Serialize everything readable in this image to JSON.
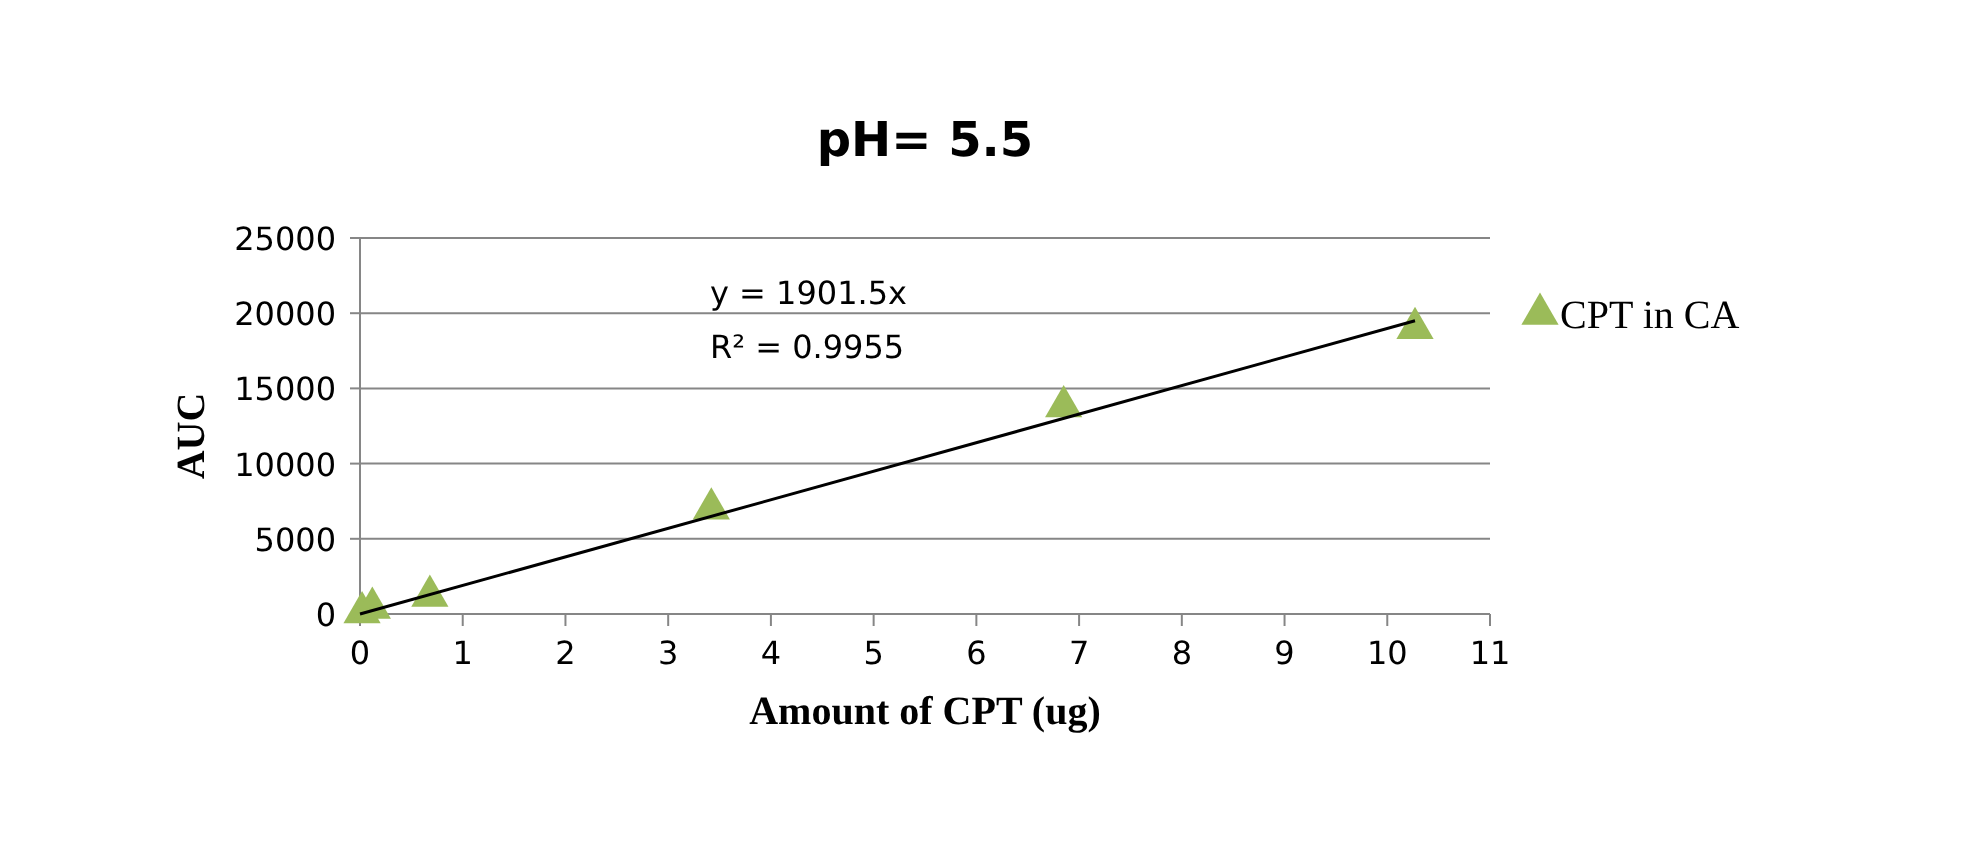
{
  "chart_data": {
    "type": "scatter",
    "title": "pH= 5.5",
    "xlabel": "Amount of CPT (ug)",
    "ylabel": "AUC",
    "xlim": [
      0,
      11
    ],
    "xticks": [
      0,
      1,
      2,
      3,
      4,
      5,
      6,
      7,
      8,
      9,
      10,
      11
    ],
    "ylim": [
      0,
      25000
    ],
    "yticks": [
      0,
      5000,
      10000,
      15000,
      20000,
      25000
    ],
    "grid": "y",
    "legend": "right",
    "marker": "triangle",
    "series": [
      {
        "name": "CPT in CA",
        "color": "#9bbb59",
        "x": [
          0.02,
          0.12,
          0.68,
          3.42,
          6.85,
          10.27
        ],
        "values": [
          100,
          400,
          1200,
          7000,
          13800,
          19000
        ]
      },
      {
        "type": "line",
        "color": "#000000",
        "marker": "none",
        "x": [
          0,
          10.27
        ],
        "values": [
          0,
          19500
        ]
      }
    ],
    "annotations": [
      "y = 1901.5x",
      "R² = 0.9955"
    ]
  }
}
